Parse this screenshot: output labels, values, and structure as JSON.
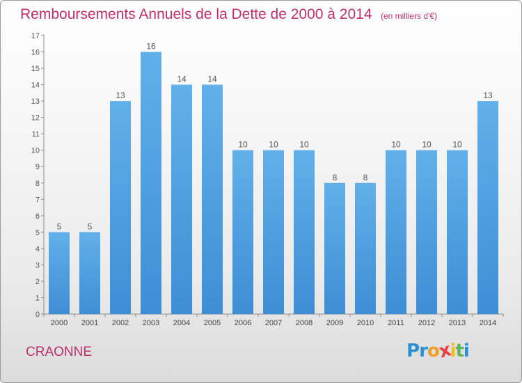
{
  "chart_data": {
    "type": "bar",
    "title": "Remboursements Annuels de la Dette de 2000 à 2014",
    "subtitle": "(en milliers d'€)",
    "xlabel": "",
    "ylabel": "",
    "categories": [
      "2000",
      "2001",
      "2002",
      "2003",
      "2004",
      "2005",
      "2006",
      "2007",
      "2008",
      "2009",
      "2010",
      "2011",
      "2012",
      "2013",
      "2014"
    ],
    "values": [
      5,
      5,
      13,
      16,
      14,
      14,
      10,
      10,
      10,
      8,
      8,
      10,
      10,
      10,
      13
    ],
    "ylim": [
      0,
      17
    ],
    "yticks": [
      0,
      1,
      2,
      3,
      4,
      5,
      6,
      7,
      8,
      9,
      10,
      11,
      12,
      13,
      14,
      15,
      16,
      17
    ],
    "grid": false,
    "legend": "none",
    "bar_color": "#3d8ed4",
    "bar_color_light": "#62b0ea"
  },
  "footer": {
    "place": "CRAONNE",
    "logo": {
      "letters": [
        "P",
        "r",
        "o",
        "x",
        "i",
        "t",
        "i"
      ],
      "colors": [
        "#2e8fd0",
        "#2e8fd0",
        "#f0a020",
        "#e84040",
        "#f0c020",
        "#5cb85c",
        "#2e8fd0"
      ]
    }
  }
}
